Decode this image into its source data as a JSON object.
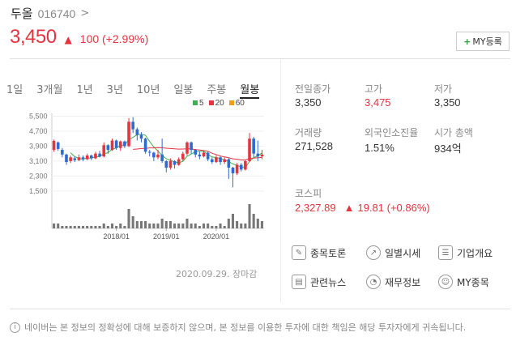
{
  "header": {
    "name": "두올",
    "code": "016740",
    "chevron": ">",
    "price": "3,450",
    "change_arrow": "▲",
    "change": "100 (+2.99%)",
    "my_button": {
      "plus": "+",
      "label": "MY등록"
    }
  },
  "tabs": [
    "1일",
    "3개월",
    "1년",
    "3년",
    "10년",
    "일봉",
    "주봉",
    "월봉"
  ],
  "active_tab": "월봉",
  "legend": [
    {
      "label": "5",
      "color": "#3fb04f"
    },
    {
      "label": "20",
      "color": "#e5333f"
    },
    {
      "label": "60",
      "color": "#f39c12"
    }
  ],
  "chart_data": {
    "type": "candlestick",
    "y_ticks": [
      "5,500",
      "4,700",
      "3,900",
      "3,100",
      "2,300",
      "1,500"
    ],
    "y_tick_values": [
      5500,
      4700,
      3900,
      3100,
      2300,
      1500
    ],
    "ylim": [
      1150,
      5650
    ],
    "x_ticks": [
      "2018/01",
      "2019/01",
      "2020/01"
    ],
    "x_tick_positions": [
      15,
      27,
      39
    ],
    "candles": [
      {
        "o": 3700,
        "c": 4180,
        "h": 4250,
        "l": 3600
      },
      {
        "o": 4100,
        "c": 3750,
        "h": 4150,
        "l": 3650
      },
      {
        "o": 3700,
        "c": 3450,
        "h": 3800,
        "l": 3300
      },
      {
        "o": 3450,
        "c": 3050,
        "h": 3500,
        "l": 2900
      },
      {
        "o": 3100,
        "c": 3300,
        "h": 3400,
        "l": 3000
      },
      {
        "o": 3250,
        "c": 3150,
        "h": 3350,
        "l": 3050
      },
      {
        "o": 3150,
        "c": 3300,
        "h": 3450,
        "l": 3100
      },
      {
        "o": 3300,
        "c": 3200,
        "h": 3400,
        "l": 3100
      },
      {
        "o": 3200,
        "c": 3400,
        "h": 3500,
        "l": 3150
      },
      {
        "o": 3400,
        "c": 3250,
        "h": 3450,
        "l": 3150
      },
      {
        "o": 3250,
        "c": 3500,
        "h": 3600,
        "l": 3200
      },
      {
        "o": 3500,
        "c": 3350,
        "h": 3650,
        "l": 3300
      },
      {
        "o": 3350,
        "c": 3950,
        "h": 4100,
        "l": 3300
      },
      {
        "o": 3950,
        "c": 3700,
        "h": 4000,
        "l": 3500
      },
      {
        "o": 3700,
        "c": 4200,
        "h": 4300,
        "l": 3650
      },
      {
        "o": 4200,
        "c": 3800,
        "h": 4250,
        "l": 3700
      },
      {
        "o": 3800,
        "c": 4150,
        "h": 4200,
        "l": 3650
      },
      {
        "o": 4150,
        "c": 3900,
        "h": 4200,
        "l": 3800
      },
      {
        "o": 3900,
        "c": 5200,
        "h": 5400,
        "l": 3850
      },
      {
        "o": 5200,
        "c": 4800,
        "h": 5450,
        "l": 4600
      },
      {
        "o": 4800,
        "c": 4500,
        "h": 4900,
        "l": 4200
      },
      {
        "o": 4500,
        "c": 4300,
        "h": 4650,
        "l": 4100
      },
      {
        "o": 4300,
        "c": 3600,
        "h": 4350,
        "l": 3500
      },
      {
        "o": 3600,
        "c": 3550,
        "h": 3700,
        "l": 3350
      },
      {
        "o": 3550,
        "c": 3300,
        "h": 3600,
        "l": 3100
      },
      {
        "o": 3300,
        "c": 3450,
        "h": 3700,
        "l": 3200
      },
      {
        "o": 3450,
        "c": 3100,
        "h": 4300,
        "l": 3000
      },
      {
        "o": 3100,
        "c": 2750,
        "h": 3150,
        "l": 2500
      },
      {
        "o": 2750,
        "c": 3100,
        "h": 3250,
        "l": 2650
      },
      {
        "o": 3100,
        "c": 2900,
        "h": 3150,
        "l": 2700
      },
      {
        "o": 2900,
        "c": 3200,
        "h": 3300,
        "l": 2850
      },
      {
        "o": 3200,
        "c": 3500,
        "h": 3600,
        "l": 3100
      },
      {
        "o": 3500,
        "c": 4100,
        "h": 4150,
        "l": 3400
      },
      {
        "o": 4100,
        "c": 3700,
        "h": 4150,
        "l": 3500
      },
      {
        "o": 3700,
        "c": 3450,
        "h": 3750,
        "l": 3300
      },
      {
        "o": 3450,
        "c": 3350,
        "h": 3600,
        "l": 3200
      },
      {
        "o": 3350,
        "c": 3550,
        "h": 3650,
        "l": 3300
      },
      {
        "o": 3550,
        "c": 3200,
        "h": 3600,
        "l": 3100
      },
      {
        "o": 3200,
        "c": 3050,
        "h": 3300,
        "l": 2950
      },
      {
        "o": 3050,
        "c": 3300,
        "h": 3400,
        "l": 3000
      },
      {
        "o": 3300,
        "c": 3050,
        "h": 3350,
        "l": 2900
      },
      {
        "o": 3050,
        "c": 3200,
        "h": 3300,
        "l": 2950
      },
      {
        "o": 3200,
        "c": 2750,
        "h": 3250,
        "l": 2150
      },
      {
        "o": 2750,
        "c": 2450,
        "h": 2800,
        "l": 1700
      },
      {
        "o": 2450,
        "c": 2900,
        "h": 3000,
        "l": 2350
      },
      {
        "o": 2900,
        "c": 2650,
        "h": 3000,
        "l": 2550
      },
      {
        "o": 2650,
        "c": 3100,
        "h": 3150,
        "l": 2600
      },
      {
        "o": 3100,
        "c": 4300,
        "h": 4600,
        "l": 3050
      },
      {
        "o": 4300,
        "c": 3500,
        "h": 4400,
        "l": 3300
      },
      {
        "o": 3500,
        "c": 3350,
        "h": 4200,
        "l": 3100
      },
      {
        "o": 3350,
        "c": 3450,
        "h": 3700,
        "l": 3200
      }
    ],
    "ma": [
      {
        "period": 5,
        "color": "#3fb04f"
      },
      {
        "period": 20,
        "color": "#e5333f"
      },
      {
        "period": 60,
        "color": "#f39c12"
      }
    ],
    "volumes": [
      2,
      2,
      1,
      1,
      1,
      1,
      1,
      1,
      1,
      1,
      1,
      1,
      2,
      1,
      2,
      1,
      2,
      1,
      8,
      5,
      3,
      3,
      3,
      2,
      2,
      2,
      4,
      3,
      3,
      2,
      2,
      2,
      4,
      2,
      2,
      1,
      2,
      2,
      1,
      1,
      2,
      1,
      4,
      6,
      3,
      2,
      2,
      10,
      6,
      4,
      3
    ],
    "up_color": "#e5333f",
    "down_color": "#2f6ad0"
  },
  "chart_date": "2020.09.29. 장마감",
  "stats": [
    {
      "label": "전일종가",
      "value": "3,350",
      "red": false
    },
    {
      "label": "고가",
      "value": "3,475",
      "red": true
    },
    {
      "label": "저가",
      "value": "3,350",
      "red": false
    },
    {
      "label": "거래량",
      "value": "271,528",
      "red": false
    },
    {
      "label": "외국인소진율",
      "value": "1.51%",
      "red": false
    },
    {
      "label": "시가 총액",
      "value": "934억",
      "red": false
    }
  ],
  "kospi": {
    "label": "코스피",
    "value": "2,327.89",
    "arrow": "▲",
    "change": "19.81 (+0.86%)"
  },
  "links": [
    {
      "label": "종목토론",
      "icon": "discussion-icon",
      "glyph": "✎"
    },
    {
      "label": "일별시세",
      "icon": "daily-chart-icon",
      "glyph": "↗"
    },
    {
      "label": "기업개요",
      "icon": "document-icon",
      "glyph": "☰"
    },
    {
      "label": "관련뉴스",
      "icon": "news-icon",
      "glyph": "▤"
    },
    {
      "label": "재무정보",
      "icon": "pie-chart-icon",
      "glyph": "◔"
    },
    {
      "label": "MY종목",
      "icon": "person-icon",
      "glyph": "☺"
    }
  ],
  "disclaimer": {
    "icon": "i",
    "text": "네이버는 본 정보의 정확성에 대해 보증하지 않으며, 본 정보를 이용한 투자에 대한 책임은 해당 투자자에게 귀속됩니다."
  }
}
